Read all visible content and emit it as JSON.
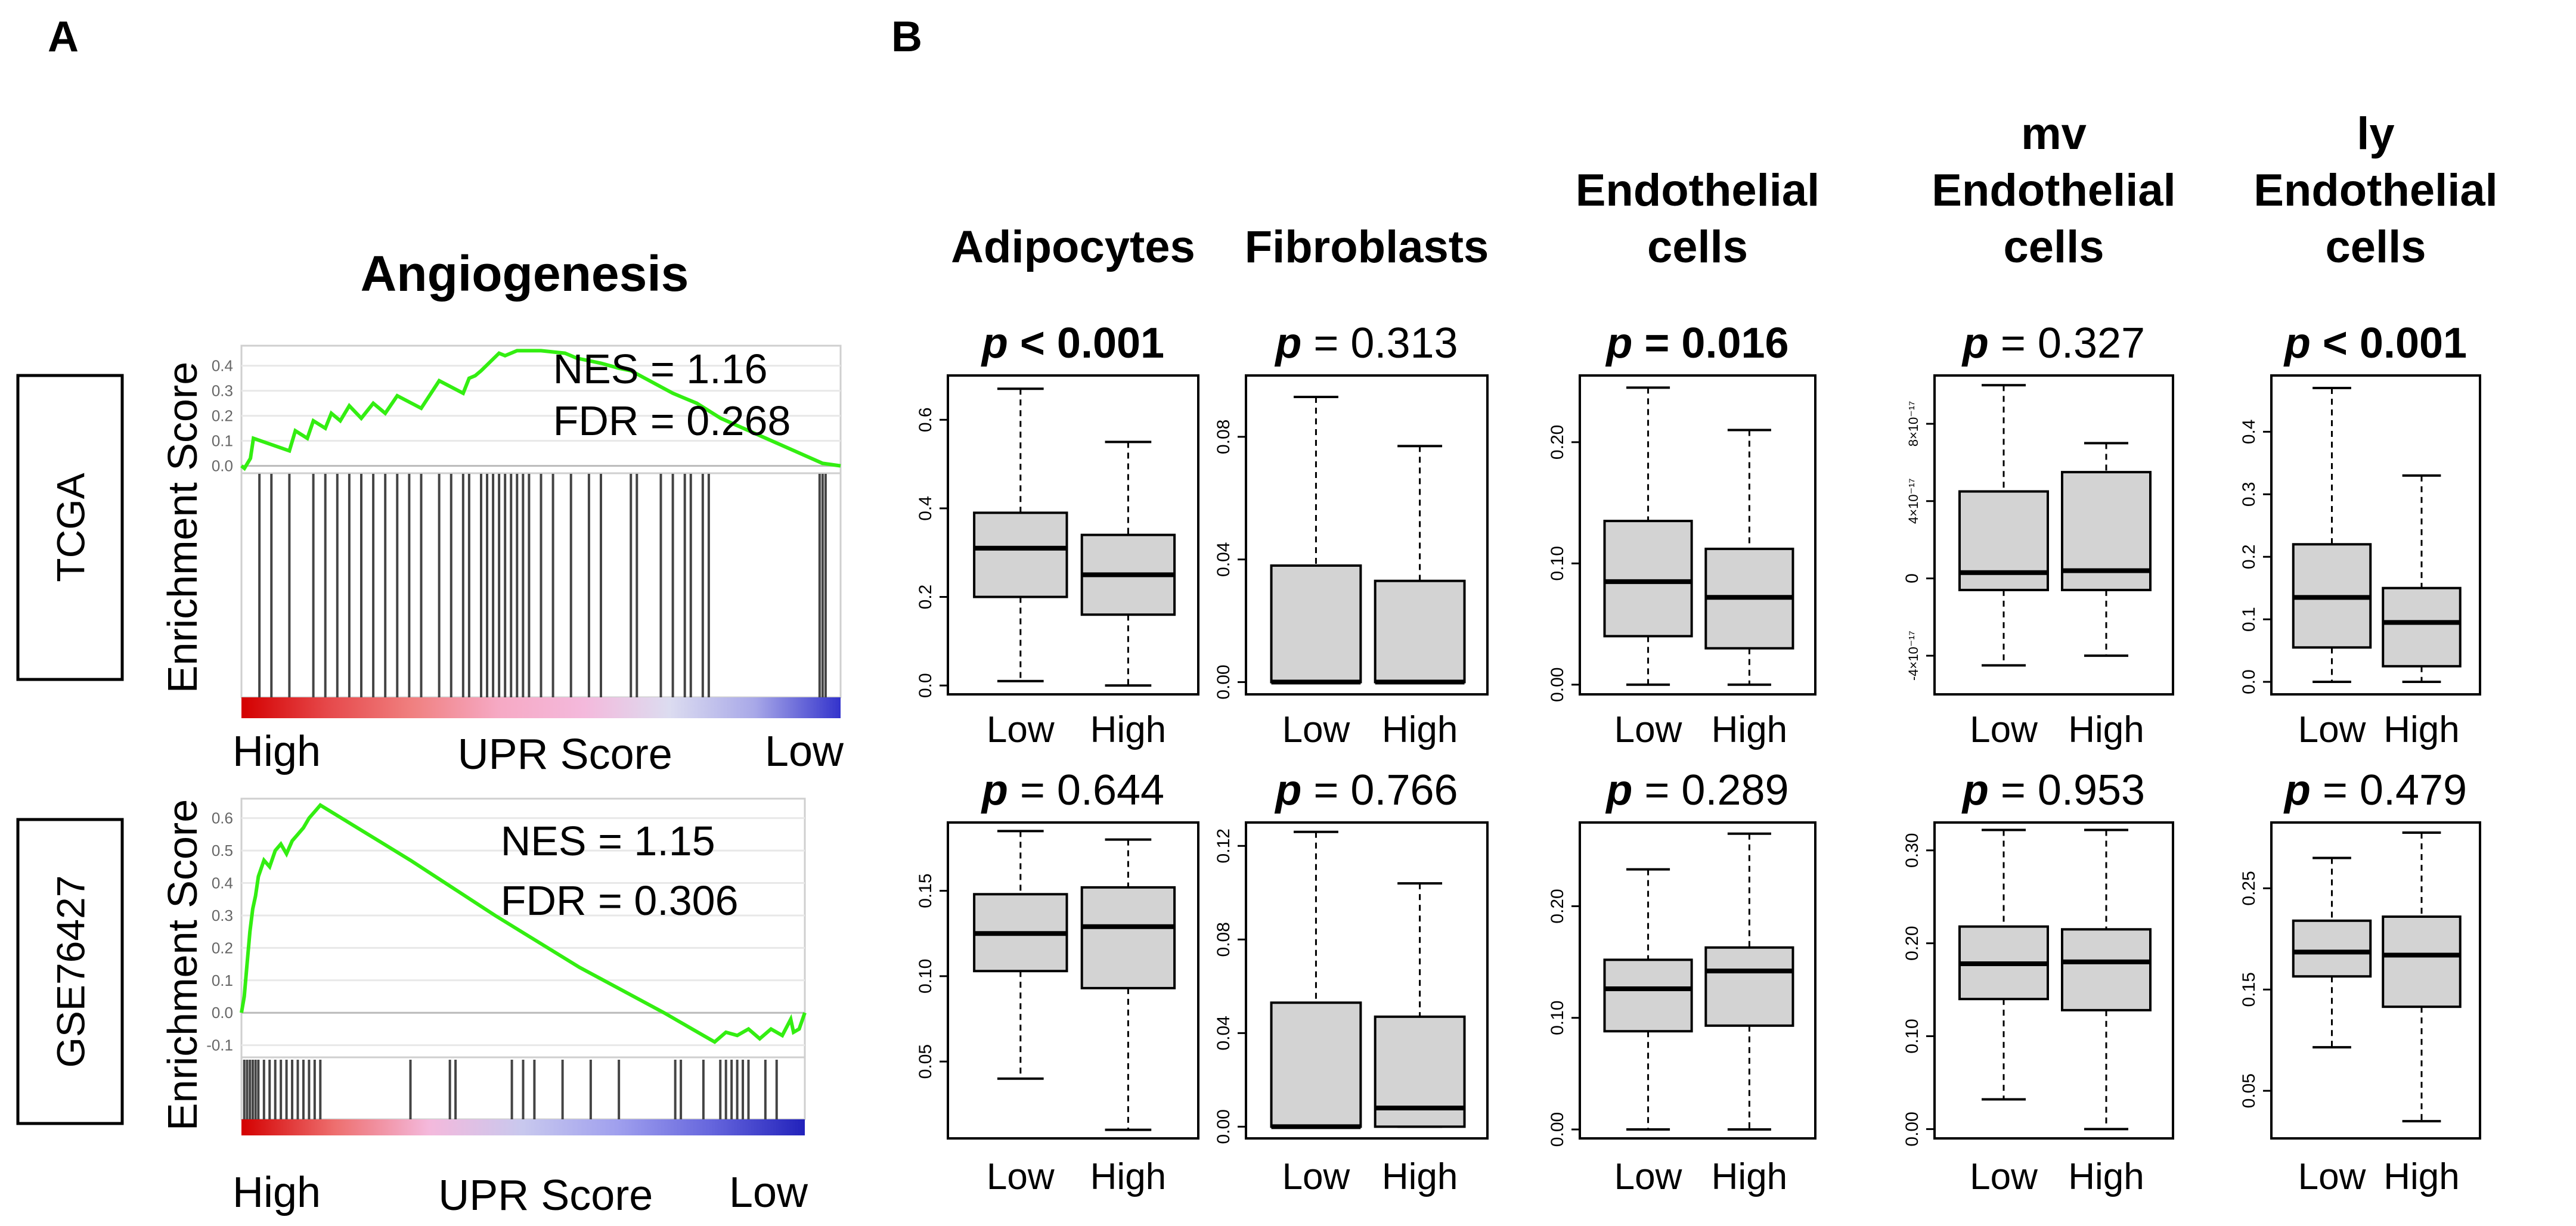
{
  "panel_labels": {
    "a": "A",
    "b": "B"
  },
  "panel_a": {
    "title": "Angiogenesis",
    "ylabel": "Enrichment Score",
    "axis_left": "High",
    "axis_mid": "UPR Score",
    "axis_right": "Low"
  },
  "panel_b": {
    "group_labels": [
      "Low",
      "High"
    ],
    "cell_types": [
      {
        "line1": "Adipocytes",
        "line2": "",
        "line3": ""
      },
      {
        "line1": "Fibroblasts",
        "line2": "",
        "line3": ""
      },
      {
        "line1": "Endothelial",
        "line2": "cells",
        "line3": ""
      },
      {
        "line1": "mv",
        "line2": "Endothelial",
        "line3": "cells"
      },
      {
        "line1": "ly",
        "line2": "Endothelial",
        "line3": "cells"
      }
    ]
  },
  "chart_data": [
    {
      "type": "line",
      "panel": "A",
      "dataset": "TCGA",
      "title": "Angiogenesis",
      "ylabel": "Enrichment Score",
      "ylim": [
        -0.02,
        0.48
      ],
      "yticks": [
        "0.0",
        "0.1",
        "0.2",
        "0.3",
        "0.4"
      ],
      "nes_label": "NES = 1.16",
      "fdr_label": "FDR = 0.268",
      "running_es": [
        [
          0,
          0
        ],
        [
          0.005,
          -0.01
        ],
        [
          0.015,
          0.03
        ],
        [
          0.02,
          0.11
        ],
        [
          0.08,
          0.06
        ],
        [
          0.09,
          0.14
        ],
        [
          0.11,
          0.11
        ],
        [
          0.12,
          0.18
        ],
        [
          0.14,
          0.15
        ],
        [
          0.15,
          0.21
        ],
        [
          0.165,
          0.18
        ],
        [
          0.18,
          0.24
        ],
        [
          0.2,
          0.19
        ],
        [
          0.22,
          0.25
        ],
        [
          0.24,
          0.21
        ],
        [
          0.26,
          0.28
        ],
        [
          0.3,
          0.23
        ],
        [
          0.33,
          0.34
        ],
        [
          0.37,
          0.29
        ],
        [
          0.38,
          0.35
        ],
        [
          0.39,
          0.36
        ],
        [
          0.4,
          0.38
        ],
        [
          0.43,
          0.45
        ],
        [
          0.44,
          0.44
        ],
        [
          0.46,
          0.46
        ],
        [
          0.5,
          0.46
        ],
        [
          0.54,
          0.45
        ],
        [
          0.56,
          0.43
        ],
        [
          0.6,
          0.41
        ],
        [
          0.63,
          0.39
        ],
        [
          0.65,
          0.38
        ],
        [
          0.72,
          0.29
        ],
        [
          0.76,
          0.25
        ],
        [
          0.8,
          0.19
        ],
        [
          0.97,
          0.01
        ],
        [
          1.0,
          0.0
        ]
      ],
      "hits": [
        0.03,
        0.05,
        0.08,
        0.12,
        0.14,
        0.16,
        0.18,
        0.2,
        0.22,
        0.24,
        0.26,
        0.28,
        0.3,
        0.33,
        0.35,
        0.37,
        0.38,
        0.4,
        0.41,
        0.42,
        0.43,
        0.44,
        0.45,
        0.46,
        0.47,
        0.48,
        0.5,
        0.52,
        0.55,
        0.58,
        0.6,
        0.65,
        0.66,
        0.7,
        0.72,
        0.74,
        0.75,
        0.77,
        0.78,
        0.965,
        0.97,
        0.975
      ],
      "gradient": [
        "#d40000",
        "#e6484a",
        "#f08080",
        "#f6a9c4",
        "#f4b9dc",
        "#dcdcf0",
        "#a8a8e8",
        "#3333cc"
      ],
      "row_label": "TCGA"
    },
    {
      "type": "line",
      "panel": "A",
      "dataset": "GSE76427",
      "ylabel": "Enrichment Score",
      "ylim": [
        -0.13,
        0.66
      ],
      "yticks": [
        "-0.1",
        "0.0",
        "0.1",
        "0.2",
        "0.3",
        "0.4",
        "0.5",
        "0.6"
      ],
      "nes_label": "NES = 1.15",
      "fdr_label": "FDR = 0.306",
      "running_es": [
        [
          0,
          0
        ],
        [
          0.005,
          0.05
        ],
        [
          0.01,
          0.15
        ],
        [
          0.015,
          0.25
        ],
        [
          0.02,
          0.32
        ],
        [
          0.025,
          0.36
        ],
        [
          0.03,
          0.42
        ],
        [
          0.04,
          0.47
        ],
        [
          0.05,
          0.45
        ],
        [
          0.06,
          0.5
        ],
        [
          0.07,
          0.52
        ],
        [
          0.08,
          0.49
        ],
        [
          0.09,
          0.53
        ],
        [
          0.1,
          0.55
        ],
        [
          0.11,
          0.57
        ],
        [
          0.12,
          0.6
        ],
        [
          0.13,
          0.62
        ],
        [
          0.14,
          0.64
        ],
        [
          0.3,
          0.47
        ],
        [
          0.45,
          0.3
        ],
        [
          0.6,
          0.14
        ],
        [
          0.75,
          0.0
        ],
        [
          0.8,
          -0.05
        ],
        [
          0.84,
          -0.09
        ],
        [
          0.86,
          -0.06
        ],
        [
          0.88,
          -0.07
        ],
        [
          0.9,
          -0.05
        ],
        [
          0.92,
          -0.08
        ],
        [
          0.94,
          -0.05
        ],
        [
          0.96,
          -0.07
        ],
        [
          0.975,
          -0.02
        ],
        [
          0.98,
          -0.06
        ],
        [
          0.99,
          -0.05
        ],
        [
          1.0,
          0.0
        ]
      ],
      "hits": [
        0.005,
        0.01,
        0.015,
        0.02,
        0.025,
        0.03,
        0.04,
        0.05,
        0.06,
        0.07,
        0.08,
        0.09,
        0.1,
        0.11,
        0.12,
        0.13,
        0.14,
        0.3,
        0.37,
        0.38,
        0.48,
        0.5,
        0.52,
        0.57,
        0.62,
        0.67,
        0.77,
        0.78,
        0.82,
        0.85,
        0.86,
        0.87,
        0.88,
        0.89,
        0.9,
        0.93,
        0.95
      ],
      "gradient": [
        "#d40000",
        "#ee6f6f",
        "#f4b9dc",
        "#c8c8ee",
        "#a0a0ee",
        "#6666dd",
        "#2222bb"
      ],
      "row_label": "GSE76427"
    },
    {
      "type": "box",
      "panel": "B",
      "cell_type": "Adipocytes",
      "row": "TCGA",
      "categories": [
        "Low",
        "High"
      ],
      "p_label": "p",
      "p_value": "< 0.001",
      "significant": true,
      "ylim": [
        -0.02,
        0.7
      ],
      "yticks": [
        "0.0",
        "0.2",
        "0.4",
        "0.6"
      ],
      "stats": [
        {
          "lower": 0.01,
          "q1": 0.2,
          "median": 0.31,
          "q3": 0.39,
          "upper": 0.67
        },
        {
          "lower": 0.0,
          "q1": 0.16,
          "median": 0.25,
          "q3": 0.34,
          "upper": 0.55
        }
      ]
    },
    {
      "type": "box",
      "panel": "B",
      "cell_type": "Fibroblasts",
      "row": "TCGA",
      "categories": [
        "Low",
        "High"
      ],
      "p_label": "p",
      "p_value": "= 0.313",
      "significant": false,
      "ylim": [
        -0.004,
        0.1
      ],
      "yticks": [
        "0.00",
        "0.04",
        "0.08"
      ],
      "stats": [
        {
          "lower": 0.0,
          "q1": 0.0,
          "median": 0.0,
          "q3": 0.038,
          "upper": 0.093
        },
        {
          "lower": 0.0,
          "q1": 0.0,
          "median": 0.0,
          "q3": 0.033,
          "upper": 0.077
        }
      ]
    },
    {
      "type": "box",
      "panel": "B",
      "cell_type": "Endothelial cells",
      "row": "TCGA",
      "categories": [
        "Low",
        "High"
      ],
      "p_label": "p",
      "p_value": "= 0.016",
      "significant": true,
      "ylim": [
        -0.008,
        0.255
      ],
      "yticks": [
        "0.00",
        "0.10",
        "0.20"
      ],
      "stats": [
        {
          "lower": 0.0,
          "q1": 0.04,
          "median": 0.085,
          "q3": 0.135,
          "upper": 0.245
        },
        {
          "lower": 0.0,
          "q1": 0.03,
          "median": 0.072,
          "q3": 0.112,
          "upper": 0.21
        }
      ]
    },
    {
      "type": "box",
      "panel": "B",
      "cell_type": "mv Endothelial cells",
      "row": "TCGA",
      "categories": [
        "Low",
        "High"
      ],
      "p_label": "p",
      "p_value": "= 0.327",
      "significant": false,
      "ylim": [
        -6e-17,
        1.05e-16
      ],
      "yticks": [
        "-4×10⁻¹⁷",
        "0",
        "4×10⁻¹⁷",
        "8×10⁻¹⁷"
      ],
      "stats": [
        {
          "lower": -4.5e-17,
          "q1": -6e-18,
          "median": 3e-18,
          "q3": 4.5e-17,
          "upper": 1e-16
        },
        {
          "lower": -4e-17,
          "q1": -6e-18,
          "median": 4e-18,
          "q3": 5.5e-17,
          "upper": 7e-17
        }
      ]
    },
    {
      "type": "box",
      "panel": "B",
      "cell_type": "ly Endothelial cells",
      "row": "TCGA",
      "categories": [
        "Low",
        "High"
      ],
      "p_label": "p",
      "p_value": "< 0.001",
      "significant": true,
      "ylim": [
        -0.02,
        0.49
      ],
      "yticks": [
        "0.0",
        "0.1",
        "0.2",
        "0.3",
        "0.4"
      ],
      "stats": [
        {
          "lower": 0.0,
          "q1": 0.055,
          "median": 0.135,
          "q3": 0.22,
          "upper": 0.47
        },
        {
          "lower": 0.0,
          "q1": 0.025,
          "median": 0.095,
          "q3": 0.15,
          "upper": 0.33
        }
      ]
    },
    {
      "type": "box",
      "panel": "B",
      "cell_type": "Adipocytes",
      "row": "GSE76427",
      "categories": [
        "Low",
        "High"
      ],
      "p_label": "p",
      "p_value": "= 0.644",
      "significant": false,
      "ylim": [
        0.005,
        0.19
      ],
      "yticks": [
        "0.05",
        "0.10",
        "0.15"
      ],
      "stats": [
        {
          "lower": 0.04,
          "q1": 0.103,
          "median": 0.125,
          "q3": 0.148,
          "upper": 0.185
        },
        {
          "lower": 0.01,
          "q1": 0.093,
          "median": 0.129,
          "q3": 0.152,
          "upper": 0.18
        }
      ]
    },
    {
      "type": "box",
      "panel": "B",
      "cell_type": "Fibroblasts",
      "row": "GSE76427",
      "categories": [
        "Low",
        "High"
      ],
      "p_label": "p",
      "p_value": "= 0.766",
      "significant": false,
      "ylim": [
        -0.005,
        0.13
      ],
      "yticks": [
        "0.00",
        "0.04",
        "0.08",
        "0.12"
      ],
      "stats": [
        {
          "lower": 0.0,
          "q1": 0.0,
          "median": 0.0,
          "q3": 0.053,
          "upper": 0.126
        },
        {
          "lower": 0.0,
          "q1": 0.0,
          "median": 0.008,
          "q3": 0.047,
          "upper": 0.104
        }
      ]
    },
    {
      "type": "box",
      "panel": "B",
      "cell_type": "Endothelial cells",
      "row": "GSE76427",
      "categories": [
        "Low",
        "High"
      ],
      "p_label": "p",
      "p_value": "= 0.289",
      "significant": false,
      "ylim": [
        -0.008,
        0.275
      ],
      "yticks": [
        "0.00",
        "0.10",
        "0.20"
      ],
      "stats": [
        {
          "lower": 0.0,
          "q1": 0.088,
          "median": 0.126,
          "q3": 0.152,
          "upper": 0.233
        },
        {
          "lower": 0.0,
          "q1": 0.093,
          "median": 0.142,
          "q3": 0.163,
          "upper": 0.265
        }
      ]
    },
    {
      "type": "box",
      "panel": "B",
      "cell_type": "mv Endothelial cells",
      "row": "GSE76427",
      "categories": [
        "Low",
        "High"
      ],
      "p_label": "p",
      "p_value": "= 0.953",
      "significant": false,
      "ylim": [
        -0.01,
        0.33
      ],
      "yticks": [
        "0.00",
        "0.10",
        "0.20",
        "0.30"
      ],
      "stats": [
        {
          "lower": 0.032,
          "q1": 0.14,
          "median": 0.178,
          "q3": 0.218,
          "upper": 0.322
        },
        {
          "lower": 0.0,
          "q1": 0.128,
          "median": 0.18,
          "q3": 0.215,
          "upper": 0.322
        }
      ]
    },
    {
      "type": "box",
      "panel": "B",
      "cell_type": "ly Endothelial cells",
      "row": "GSE76427",
      "categories": [
        "Low",
        "High"
      ],
      "p_label": "p",
      "p_value": "= 0.479",
      "significant": false,
      "ylim": [
        0.003,
        0.315
      ],
      "yticks": [
        "0.05",
        "0.15",
        "0.25"
      ],
      "stats": [
        {
          "lower": 0.093,
          "q1": 0.163,
          "median": 0.187,
          "q3": 0.218,
          "upper": 0.28
        },
        {
          "lower": 0.02,
          "q1": 0.133,
          "median": 0.184,
          "q3": 0.222,
          "upper": 0.305
        }
      ]
    }
  ]
}
